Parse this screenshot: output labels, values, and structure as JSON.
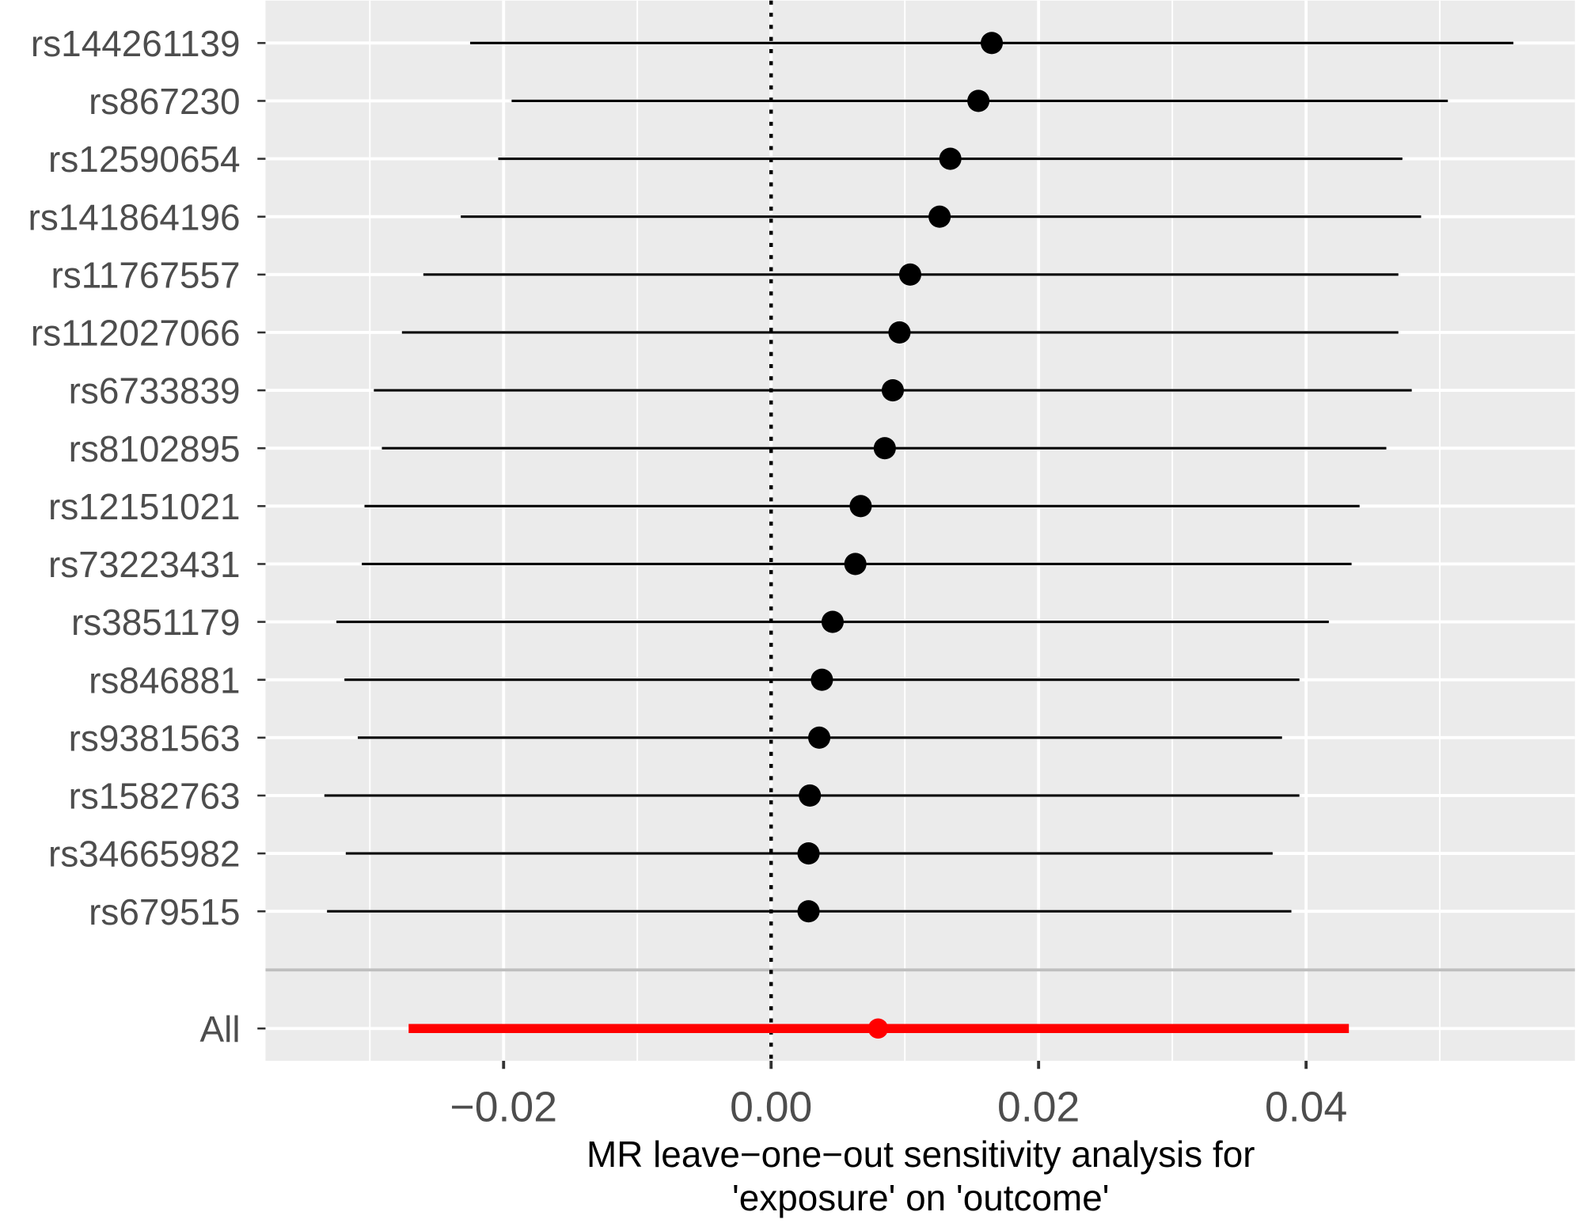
{
  "chart_data": {
    "type": "forest",
    "xlabel": [
      "MR leave−one−out sensitivity analysis for",
      "'exposure' on 'outcome'"
    ],
    "ylabel": "",
    "xlim": [
      -0.0378,
      0.0601
    ],
    "xticks": [
      -0.02,
      0.0,
      0.02,
      0.04
    ],
    "xtick_labels": [
      "−0.02",
      "0.00",
      "0.02",
      "0.04"
    ],
    "minor_gridlines": [
      -0.03,
      -0.01,
      0.01,
      0.03,
      0.05
    ],
    "reference_line": 0,
    "grid": true,
    "rows": [
      {
        "label": "rs144261139",
        "b": 0.0165,
        "lo": -0.0225,
        "hi": 0.0555
      },
      {
        "label": "rs867230",
        "b": 0.0155,
        "lo": -0.0194,
        "hi": 0.0506
      },
      {
        "label": "rs12590654",
        "b": 0.0134,
        "lo": -0.0204,
        "hi": 0.0472
      },
      {
        "label": "rs141864196",
        "b": 0.0126,
        "lo": -0.0232,
        "hi": 0.0486
      },
      {
        "label": "rs11767557",
        "b": 0.0104,
        "lo": -0.026,
        "hi": 0.0469
      },
      {
        "label": "rs112027066",
        "b": 0.0096,
        "lo": -0.0276,
        "hi": 0.0469
      },
      {
        "label": "rs6733839",
        "b": 0.0091,
        "lo": -0.0297,
        "hi": 0.0479
      },
      {
        "label": "rs8102895",
        "b": 0.0085,
        "lo": -0.0291,
        "hi": 0.046
      },
      {
        "label": "rs12151021",
        "b": 0.0067,
        "lo": -0.0304,
        "hi": 0.044
      },
      {
        "label": "rs73223431",
        "b": 0.0063,
        "lo": -0.0306,
        "hi": 0.0434
      },
      {
        "label": "rs3851179",
        "b": 0.0046,
        "lo": -0.0325,
        "hi": 0.0417
      },
      {
        "label": "rs846881",
        "b": 0.0038,
        "lo": -0.0319,
        "hi": 0.0395
      },
      {
        "label": "rs9381563",
        "b": 0.0036,
        "lo": -0.0309,
        "hi": 0.0382
      },
      {
        "label": "rs1582763",
        "b": 0.0029,
        "lo": -0.0334,
        "hi": 0.0395
      },
      {
        "label": "rs34665982",
        "b": 0.0028,
        "lo": -0.0318,
        "hi": 0.0375
      },
      {
        "label": "rs679515",
        "b": 0.0028,
        "lo": -0.0332,
        "hi": 0.0389
      }
    ],
    "overall": {
      "label": "All",
      "b": 0.008,
      "lo": -0.0271,
      "hi": 0.0432
    },
    "colors": {
      "panel": "#EBEBEB",
      "grid": "#FFFFFF",
      "point": "#000000",
      "overall": "#FF0000",
      "separator": "#BEBEBE"
    }
  }
}
